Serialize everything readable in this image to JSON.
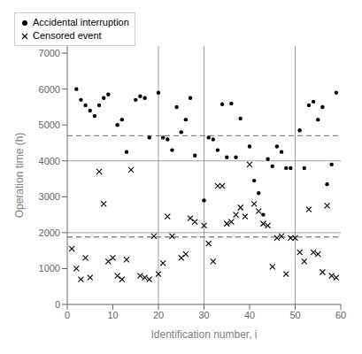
{
  "chart_data": {
    "type": "scatter",
    "xlabel": "Identification number, i",
    "ylabel": "Operation time (h)",
    "xlim": [
      0,
      60
    ],
    "ylim": [
      0,
      7200
    ],
    "xticks": [
      0,
      10,
      20,
      30,
      40,
      50,
      60
    ],
    "yticks": [
      0,
      1000,
      2000,
      3000,
      4000,
      5000,
      6000,
      7000
    ],
    "grid": false,
    "legend": "upper right",
    "series": [
      {
        "name": "Accidental interruption",
        "color": "black",
        "marker": "o",
        "x": [
          2,
          3,
          4,
          5,
          6,
          7,
          8,
          9,
          11,
          12,
          13,
          15,
          16,
          17,
          18,
          20,
          21,
          22,
          23,
          24,
          25,
          26,
          27,
          28,
          30,
          31,
          32,
          33,
          34,
          35,
          36,
          37,
          38,
          40,
          41,
          42,
          43,
          44,
          45,
          46,
          47,
          48,
          49,
          51,
          52,
          53,
          54,
          55,
          56,
          57,
          58,
          59
        ],
        "values": [
          6000,
          5700,
          5550,
          5400,
          5250,
          5550,
          5750,
          5850,
          5000,
          5150,
          4250,
          5700,
          5800,
          5750,
          4650,
          5900,
          4650,
          4600,
          4300,
          5500,
          4800,
          5150,
          5750,
          4150,
          2900,
          4650,
          4600,
          4300,
          5580,
          4100,
          5600,
          4100,
          5180,
          4400,
          3450,
          3100,
          2500,
          4050,
          3850,
          4400,
          4250,
          3800,
          3800,
          4850,
          3800,
          5550,
          5650,
          5150,
          5500,
          3350,
          3900,
          5900
        ]
      },
      {
        "name": "Censored event",
        "color": "black",
        "marker": "x",
        "x": [
          1,
          2,
          3,
          4,
          5,
          7,
          8,
          9,
          10,
          11,
          12,
          13,
          14,
          16,
          17,
          18,
          19,
          20,
          21,
          22,
          23,
          25,
          26,
          27,
          28,
          30,
          31,
          32,
          33,
          34,
          35,
          36,
          37,
          38,
          39,
          40,
          41,
          42,
          43,
          44,
          45,
          46,
          47,
          48,
          49,
          50,
          51,
          52,
          53,
          54,
          55,
          56,
          57,
          58,
          59
        ],
        "values": [
          1550,
          1000,
          700,
          1300,
          750,
          3700,
          2800,
          1200,
          1300,
          800,
          700,
          1250,
          3750,
          800,
          750,
          700,
          1900,
          850,
          1150,
          2450,
          1900,
          1300,
          1400,
          2400,
          2300,
          2200,
          1700,
          1200,
          3300,
          3300,
          2250,
          2300,
          2500,
          2700,
          2450,
          3900,
          2800,
          2600,
          2250,
          2200,
          1050,
          1850,
          1900,
          850,
          1850,
          1850,
          1450,
          1200,
          2650,
          1450,
          1400,
          900,
          2750,
          800,
          750
        ]
      }
    ],
    "hlines": [
      {
        "value": 4700,
        "color": "#888888",
        "line_style": "dashed"
      },
      {
        "value": 1880,
        "color": "#888888",
        "line_style": "dashed"
      },
      {
        "value": 4000,
        "color": "#888888",
        "line_style": "solid"
      },
      {
        "value": 2000,
        "color": "#888888",
        "line_style": "solid"
      }
    ],
    "vlines": [
      {
        "value": 20,
        "color": "#888888",
        "line_style": "solid"
      },
      {
        "value": 30,
        "color": "#888888",
        "line_style": "solid"
      },
      {
        "value": 50,
        "color": "#888888",
        "line_style": "solid"
      }
    ]
  }
}
